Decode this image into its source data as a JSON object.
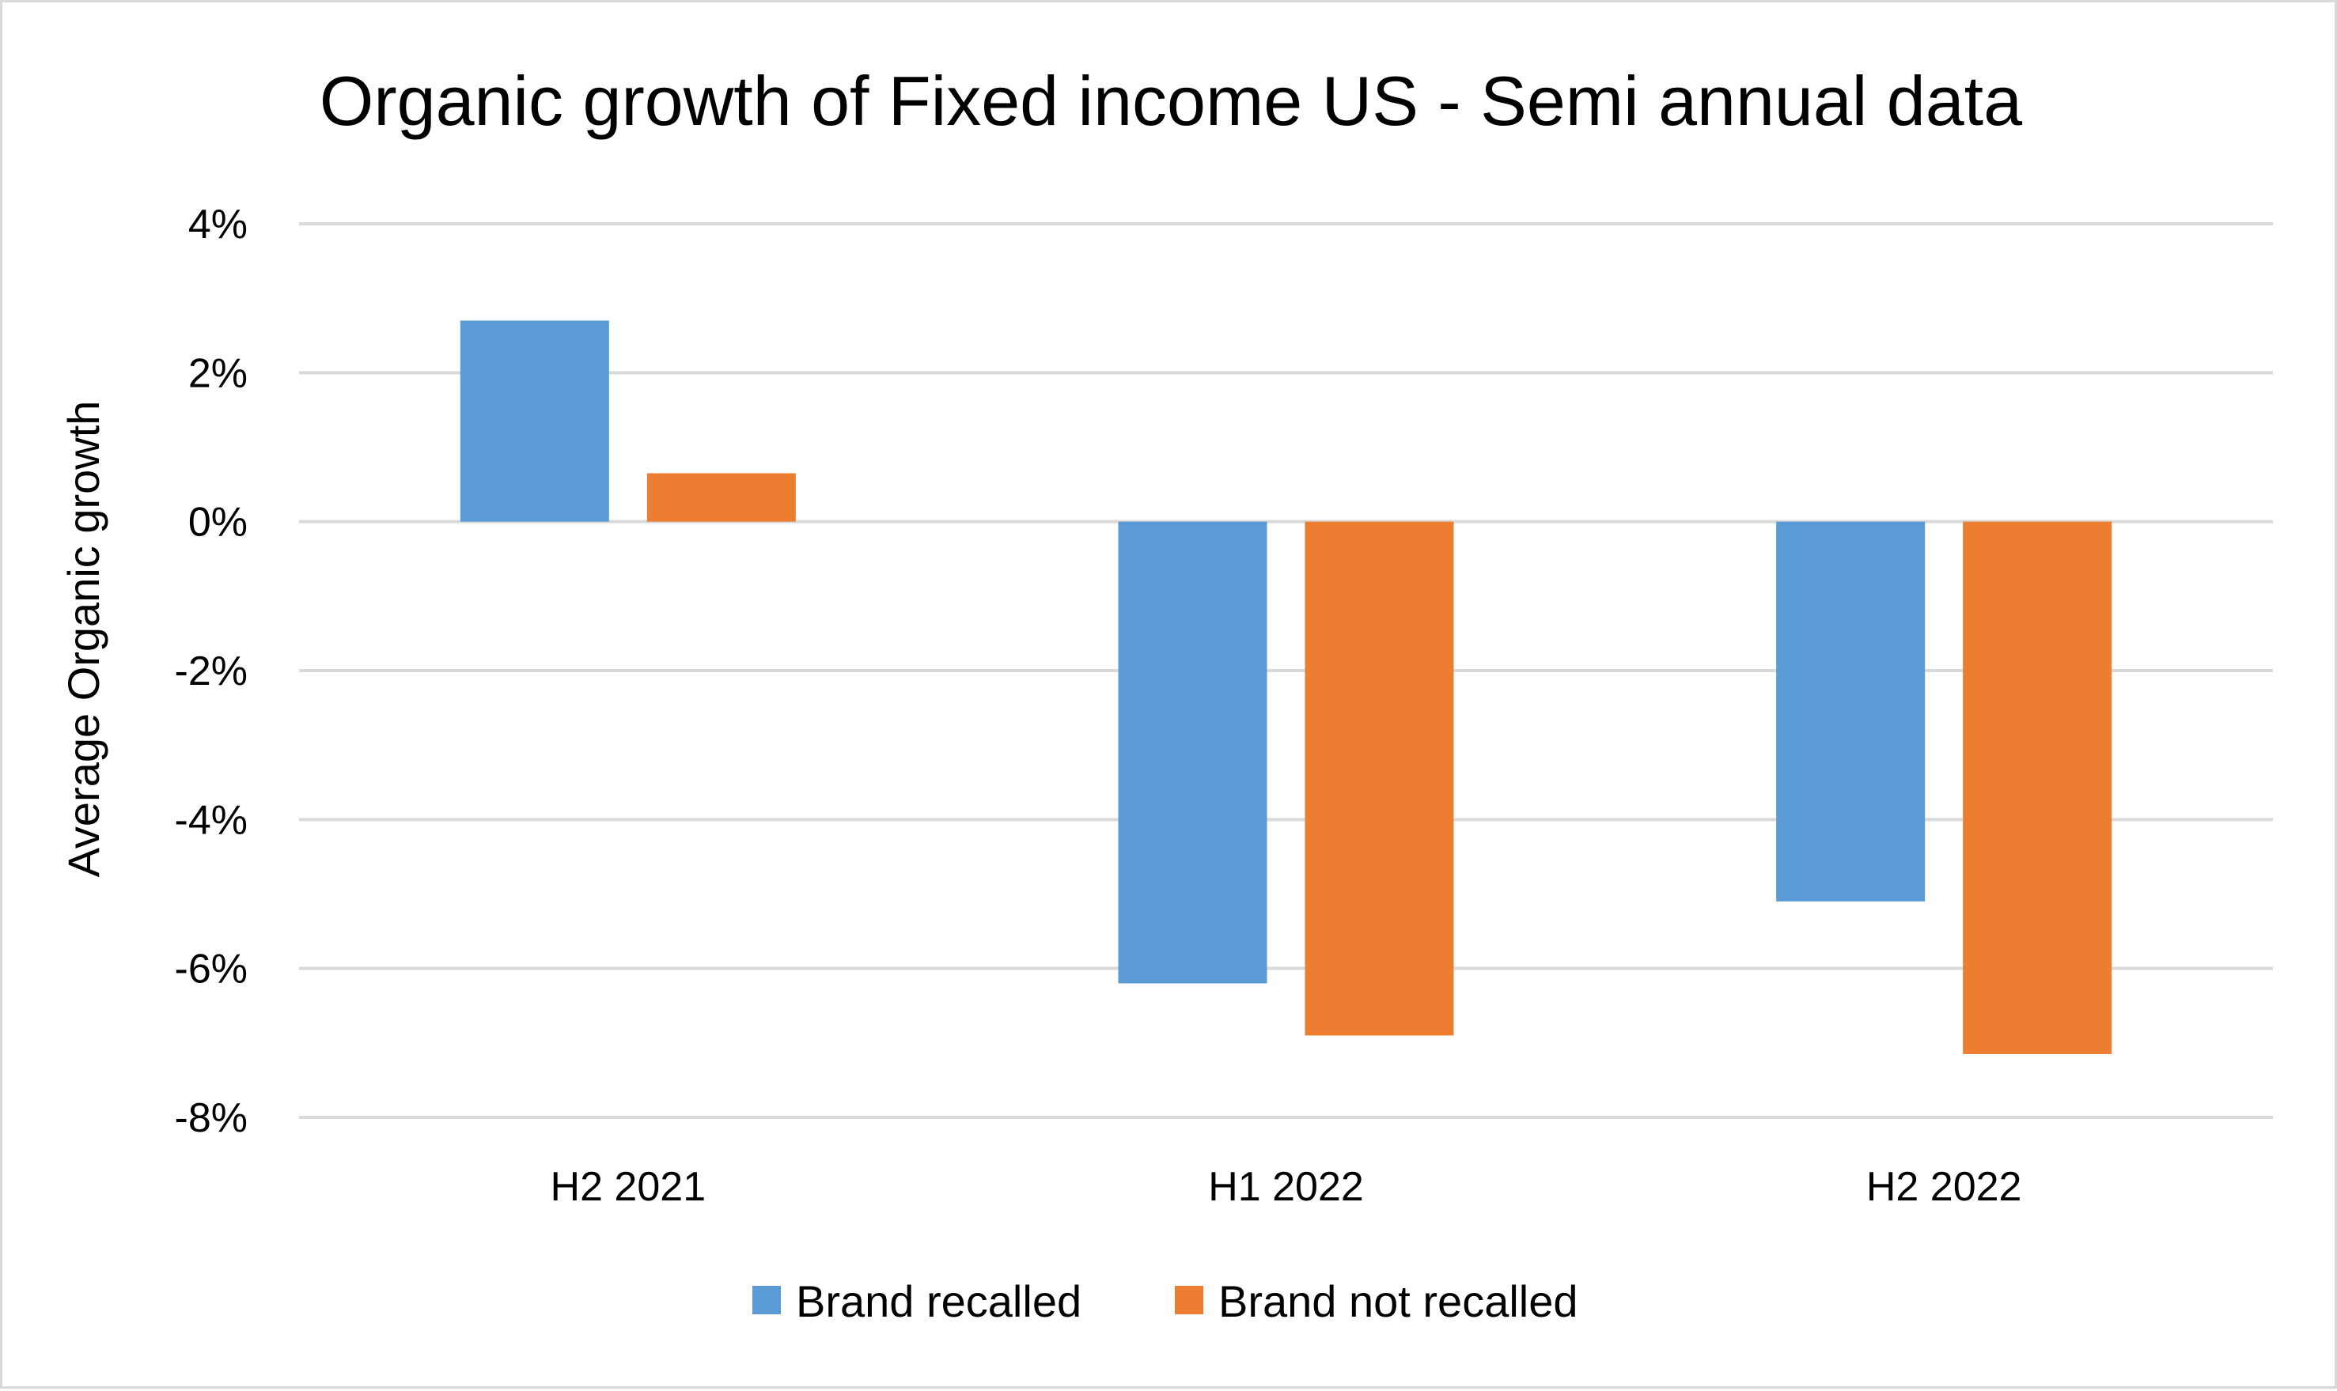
{
  "chart_data": {
    "type": "bar",
    "title": "Organic growth of Fixed income US - Semi annual data",
    "xlabel": "",
    "ylabel": "Average Organic growth",
    "categories": [
      "H2 2021",
      "H1 2022",
      "H2 2022"
    ],
    "series": [
      {
        "name": "Brand recalled",
        "color": "#5b9bd5",
        "values": [
          2.7,
          -6.2,
          -5.1
        ]
      },
      {
        "name": "Brand not recalled",
        "color": "#ed7d31",
        "values": [
          0.65,
          -6.9,
          -7.15
        ]
      }
    ],
    "ylim": [
      -8,
      4
    ],
    "yticks": [
      4,
      2,
      0,
      -2,
      -4,
      -6,
      -8
    ],
    "ytick_labels": [
      "4%",
      "2%",
      "0%",
      "-2%",
      "-4%",
      "-6%",
      "-8%"
    ],
    "grid": true,
    "legend_position": "bottom",
    "colors": {
      "gridline": "#d9d9d9",
      "border": "#d9d9d9"
    }
  }
}
